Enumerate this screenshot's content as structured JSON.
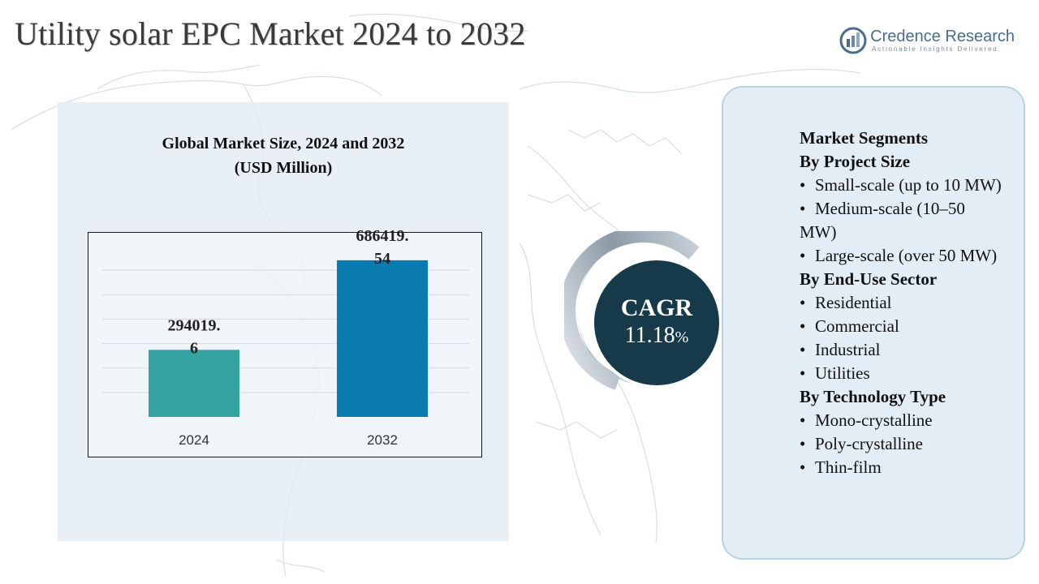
{
  "header": {
    "title": "Utility solar EPC Market 2024 to 2032"
  },
  "brand": {
    "name": "Credence Research",
    "tagline": "Actionable Insights Delivered",
    "logo_icon": "brand-logo-icon",
    "color": "#4a6d8c"
  },
  "chart": {
    "title_line1": "Global Market Size, 2024 and 2032",
    "title_line2": "(USD Million)"
  },
  "chart_data": {
    "type": "bar",
    "title": "Global Market Size, 2024 and 2032 (USD Million)",
    "categories": [
      "2024",
      "2032"
    ],
    "values": [
      294019.6,
      686419.54
    ],
    "value_labels": [
      [
        "294019.",
        "6"
      ],
      [
        "686419.",
        "54"
      ]
    ],
    "colors": [
      "#35a3a2",
      "#0a7bad"
    ],
    "ylim": [
      0,
      750000
    ],
    "grid": true,
    "legend": "none"
  },
  "cagr": {
    "label": "CAGR",
    "value": "11.18",
    "unit": "%",
    "circle_color": "#173a4a"
  },
  "segments": {
    "title": "Market Segments",
    "groups": [
      {
        "heading": "By Project Size",
        "items": [
          "Small-scale (up to 10 MW)",
          "Medium-scale (10–50 MW)",
          "Large-scale (over 50 MW)"
        ]
      },
      {
        "heading": "By End-Use Sector",
        "items": [
          "Residential",
          "Commercial",
          "Industrial",
          "Utilities"
        ]
      },
      {
        "heading": "By Technology Type",
        "items": [
          "Mono-crystalline",
          "Poly-crystalline",
          "Thin-film"
        ]
      }
    ]
  }
}
